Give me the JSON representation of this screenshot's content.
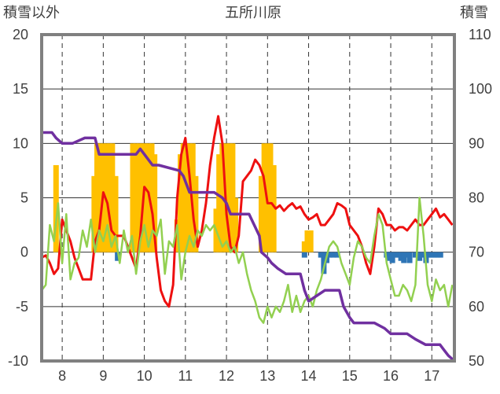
{
  "chart_data": {
    "type": "line",
    "title": "五所川原",
    "ylabel_left": "積雪以外",
    "ylabel_right": "積雪",
    "xlim": [
      7.5,
      17.55
    ],
    "ylim_left": [
      -10,
      20
    ],
    "ylim_right": [
      50,
      110
    ],
    "x_ticks": [
      "8",
      "9",
      "10",
      "11",
      "12",
      "13",
      "14",
      "15",
      "16",
      "17"
    ],
    "y_ticks_left": [
      "20",
      "15",
      "10",
      "5",
      "0",
      "-5",
      "-10"
    ],
    "y_ticks_right": [
      "110",
      "100",
      "90",
      "80",
      "70",
      "60",
      "50"
    ],
    "grid": true,
    "colors": {
      "red": "#ee1010",
      "green": "#92d050",
      "purple": "#7030a0",
      "orange": "#ffc000",
      "blue": "#2e75b6",
      "grid": "#333333",
      "frame": "#808080"
    },
    "series": [
      {
        "axis": "left",
        "color": "red",
        "x": [
          7.5,
          7.6,
          7.7,
          7.8,
          7.9,
          8.0,
          8.1,
          8.2,
          8.3,
          8.4,
          8.5,
          8.6,
          8.7,
          8.8,
          8.9,
          9.0,
          9.1,
          9.2,
          9.3,
          9.4,
          9.5,
          9.6,
          9.7,
          9.8,
          9.9,
          10.0,
          10.1,
          10.2,
          10.3,
          10.4,
          10.5,
          10.6,
          10.7,
          10.8,
          10.9,
          11.0,
          11.1,
          11.2,
          11.3,
          11.4,
          11.5,
          11.6,
          11.7,
          11.8,
          11.9,
          12.0,
          12.1,
          12.2,
          12.3,
          12.4,
          12.5,
          12.6,
          12.7,
          12.8,
          12.9,
          13.0,
          13.1,
          13.2,
          13.3,
          13.4,
          13.5,
          13.6,
          13.7,
          13.8,
          13.9,
          14.0,
          14.1,
          14.2,
          14.3,
          14.4,
          14.5,
          14.6,
          14.7,
          14.8,
          14.9,
          15.0,
          15.1,
          15.2,
          15.3,
          15.4,
          15.5,
          15.6,
          15.7,
          15.8,
          15.9,
          16.0,
          16.1,
          16.2,
          16.3,
          16.4,
          16.5,
          16.6,
          16.7,
          16.8,
          16.9,
          17.0,
          17.1,
          17.2,
          17.3,
          17.4,
          17.5
        ],
        "values": [
          -0.5,
          -0.3,
          -1.0,
          -2.0,
          -1.5,
          3.0,
          2.0,
          1.0,
          -0.5,
          -1.5,
          -2.5,
          -2.5,
          -2.5,
          1.0,
          2.0,
          5.5,
          4.5,
          2.0,
          1.5,
          1.5,
          1.5,
          0.5,
          -0.5,
          -1.5,
          1.5,
          6.0,
          5.5,
          3.5,
          -0.5,
          -3.5,
          -4.5,
          -5.0,
          -3.0,
          5.0,
          9.0,
          10.5,
          7.0,
          3.0,
          0.5,
          2.0,
          4.5,
          8.0,
          10.5,
          12.5,
          10.0,
          3.5,
          0.5,
          0.0,
          1.5,
          6.5,
          7.0,
          7.5,
          8.5,
          8.0,
          7.0,
          4.5,
          4.5,
          4.0,
          4.3,
          3.8,
          4.2,
          4.5,
          4.0,
          4.2,
          3.5,
          3.0,
          3.2,
          3.5,
          2.5,
          2.5,
          3.0,
          3.5,
          4.5,
          4.3,
          4.0,
          2.5,
          2.0,
          1.5,
          0.5,
          -1.0,
          -2.0,
          0.5,
          4.0,
          3.5,
          2.5,
          2.5,
          2.0,
          2.3,
          2.3,
          2.0,
          2.5,
          3.0,
          2.5,
          2.5,
          3.0,
          3.5,
          4.0,
          3.2,
          3.5,
          3.0,
          2.5
        ],
        "width": 3
      },
      {
        "axis": "left",
        "color": "green",
        "x": [
          7.5,
          7.6,
          7.7,
          7.8,
          7.9,
          8.0,
          8.1,
          8.2,
          8.3,
          8.4,
          8.5,
          8.6,
          8.7,
          8.8,
          8.9,
          9.0,
          9.1,
          9.2,
          9.3,
          9.4,
          9.5,
          9.6,
          9.7,
          9.8,
          9.9,
          10.0,
          10.1,
          10.2,
          10.3,
          10.4,
          10.5,
          10.6,
          10.7,
          10.8,
          10.9,
          11.0,
          11.1,
          11.2,
          11.3,
          11.4,
          11.5,
          11.6,
          11.7,
          11.8,
          11.9,
          12.0,
          12.1,
          12.2,
          12.3,
          12.4,
          12.5,
          12.6,
          12.7,
          12.8,
          12.9,
          13.0,
          13.1,
          13.2,
          13.3,
          13.4,
          13.5,
          13.6,
          13.7,
          13.8,
          13.9,
          14.0,
          14.1,
          14.2,
          14.3,
          14.4,
          14.5,
          14.6,
          14.7,
          14.8,
          14.9,
          15.0,
          15.1,
          15.2,
          15.3,
          15.4,
          15.5,
          15.6,
          15.7,
          15.8,
          15.9,
          16.0,
          16.1,
          16.2,
          16.3,
          16.4,
          16.5,
          16.6,
          16.7,
          16.8,
          16.9,
          17.0,
          17.1,
          17.2,
          17.3,
          17.4,
          17.5
        ],
        "values": [
          -3.5,
          -3.0,
          2.5,
          1.0,
          4.5,
          -1.0,
          3.5,
          -2.5,
          -1.0,
          -0.5,
          2.0,
          0.5,
          3.0,
          0.0,
          2.0,
          1.0,
          2.5,
          0.5,
          1.5,
          -1.0,
          2.0,
          0.0,
          1.5,
          -2.0,
          1.0,
          2.5,
          0.5,
          2.0,
          1.5,
          3.0,
          -2.0,
          1.0,
          0.5,
          2.5,
          -2.5,
          0.0,
          1.5,
          0.5,
          2.0,
          1.5,
          2.5,
          2.0,
          2.5,
          1.5,
          0.5,
          1.0,
          0.0,
          0.5,
          -1.0,
          0.0,
          -2.0,
          -3.5,
          -4.5,
          -6.0,
          -6.5,
          -5.0,
          -6.0,
          -5.0,
          -5.5,
          -4.5,
          -3.0,
          -5.5,
          -4.0,
          -5.5,
          -4.5,
          -4.0,
          -5.0,
          -3.5,
          -2.5,
          -1.0,
          0.5,
          1.0,
          0.5,
          -1.0,
          -2.0,
          -3.0,
          -0.5,
          1.0,
          0.5,
          -0.5,
          -1.0,
          1.5,
          3.5,
          2.5,
          -1.0,
          -2.5,
          -4.0,
          -4.0,
          -3.0,
          -3.5,
          -4.5,
          -3.0,
          5.0,
          1.5,
          -3.0,
          -4.5,
          -2.5,
          -3.5,
          -3.0,
          -5.0,
          -3.0
        ],
        "width": 2.5
      },
      {
        "axis": "right",
        "color": "purple",
        "x": [
          7.5,
          7.75,
          7.85,
          8.0,
          8.1,
          8.25,
          8.55,
          8.8,
          8.9,
          9.35,
          9.8,
          9.9,
          10.0,
          10.2,
          10.35,
          10.85,
          10.95,
          11.1,
          11.7,
          11.9,
          12.0,
          12.1,
          12.55,
          12.8,
          12.85,
          13.0,
          13.1,
          13.25,
          13.45,
          13.8,
          13.9,
          14.0,
          14.2,
          14.4,
          14.75,
          14.85,
          15.0,
          15.1,
          15.6,
          15.85,
          16.0,
          16.25,
          16.4,
          16.6,
          16.85,
          17.2,
          17.3,
          17.4,
          17.55
        ],
        "values": [
          92,
          92,
          91,
          90,
          90,
          90,
          91,
          91,
          88,
          88,
          88,
          89,
          88,
          86,
          86,
          85,
          84,
          81,
          81,
          80,
          79,
          77,
          77,
          73,
          70,
          69,
          68,
          67,
          66,
          66,
          63,
          61,
          62,
          63,
          63,
          60,
          58,
          57,
          57,
          56,
          55,
          55,
          55,
          54,
          53,
          53,
          52,
          51,
          50
        ],
        "width": 3.5
      }
    ],
    "bars_orange": {
      "axis": "left",
      "color": "orange",
      "x": [
        7.85,
        8.78,
        8.85,
        8.92,
        9.0,
        9.08,
        9.15,
        9.22,
        9.3,
        9.72,
        9.8,
        9.88,
        9.95,
        10.02,
        10.1,
        10.18,
        10.25,
        10.8,
        10.88,
        10.95,
        11.02,
        11.1,
        11.18,
        11.25,
        11.75,
        11.82,
        11.9,
        12.0,
        12.08,
        12.15,
        12.22,
        12.85,
        12.92,
        13.0,
        13.07,
        13.15,
        13.9,
        13.97,
        14.05
      ],
      "values": [
        8.0,
        7.0,
        10.0,
        10.0,
        10.0,
        10.0,
        10.0,
        10.0,
        7.0,
        10.0,
        10.0,
        10.0,
        10.0,
        10.0,
        10.0,
        10.0,
        9.0,
        3.0,
        9.0,
        10.0,
        10.0,
        10.0,
        10.0,
        7.0,
        4.0,
        9.0,
        10.0,
        10.0,
        10.0,
        10.0,
        5.0,
        7.0,
        10.0,
        10.0,
        10.0,
        8.0,
        1.0,
        2.0,
        2.0
      ]
    },
    "bars_blue": {
      "axis": "left",
      "color": "blue",
      "x": [
        9.35,
        13.9,
        14.3,
        14.37,
        14.44,
        14.51,
        14.6,
        14.7,
        15.9,
        15.97,
        16.04,
        16.11,
        16.18,
        16.25,
        16.32,
        16.39,
        16.46,
        16.6,
        16.7,
        16.78,
        16.86,
        16.93,
        17.0,
        17.07,
        17.14,
        17.21
      ],
      "values": [
        -0.8,
        -0.5,
        -0.5,
        -2.0,
        -1.0,
        -0.5,
        -0.5,
        -0.5,
        -0.5,
        -0.8,
        -1.0,
        -0.5,
        -0.5,
        -0.8,
        -1.0,
        -0.5,
        -1.0,
        -0.5,
        -0.8,
        -0.5,
        -1.0,
        -0.5,
        -0.5,
        -0.5,
        -0.5,
        -0.5
      ]
    }
  }
}
